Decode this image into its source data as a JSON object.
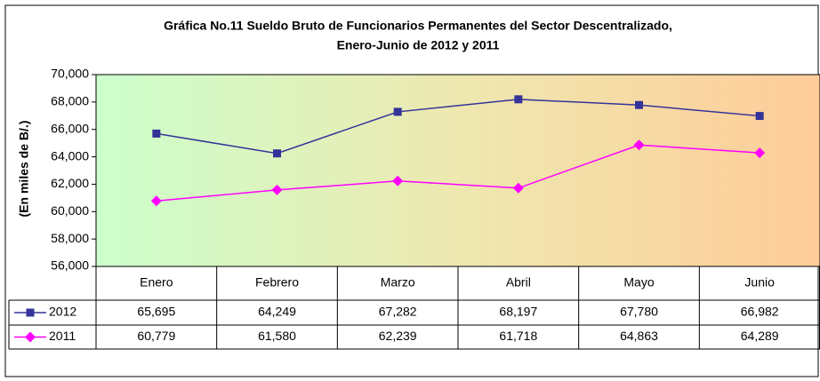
{
  "chart_data": {
    "type": "line",
    "title": "Gráfica No.11 Sueldo Bruto de Funcionarios Permanentes del Sector Descentralizado,",
    "subtitle": "Enero-Junio de 2012 y 2011",
    "y_label": "(En miles de B/.)",
    "categories": [
      "Enero",
      "Febrero",
      "Marzo",
      "Abril",
      "Mayo",
      "Junio"
    ],
    "series": [
      {
        "name": "2012",
        "color": "#333399",
        "marker": "square",
        "values": [
          65695,
          64249,
          67282,
          68197,
          67780,
          66982
        ],
        "value_labels": [
          "65,695",
          "64,249",
          "67,282",
          "68,197",
          "67,780",
          "66,982"
        ]
      },
      {
        "name": "2011",
        "color": "#ff00ff",
        "marker": "diamond",
        "values": [
          60779,
          61580,
          62239,
          61718,
          64863,
          64289
        ],
        "value_labels": [
          "60,779",
          "61,580",
          "62,239",
          "61,718",
          "64,863",
          "64,289"
        ]
      }
    ],
    "ylim": [
      56000,
      70000
    ],
    "yticks": [
      {
        "value": 56000,
        "label": "56,000"
      },
      {
        "value": 58000,
        "label": "58,000"
      },
      {
        "value": 60000,
        "label": "60,000"
      },
      {
        "value": 62000,
        "label": "62,000"
      },
      {
        "value": 64000,
        "label": "64,000"
      },
      {
        "value": 66000,
        "label": "66,000"
      },
      {
        "value": 68000,
        "label": "68,000"
      },
      {
        "value": 70000,
        "label": "70,000"
      }
    ],
    "grid": false
  }
}
